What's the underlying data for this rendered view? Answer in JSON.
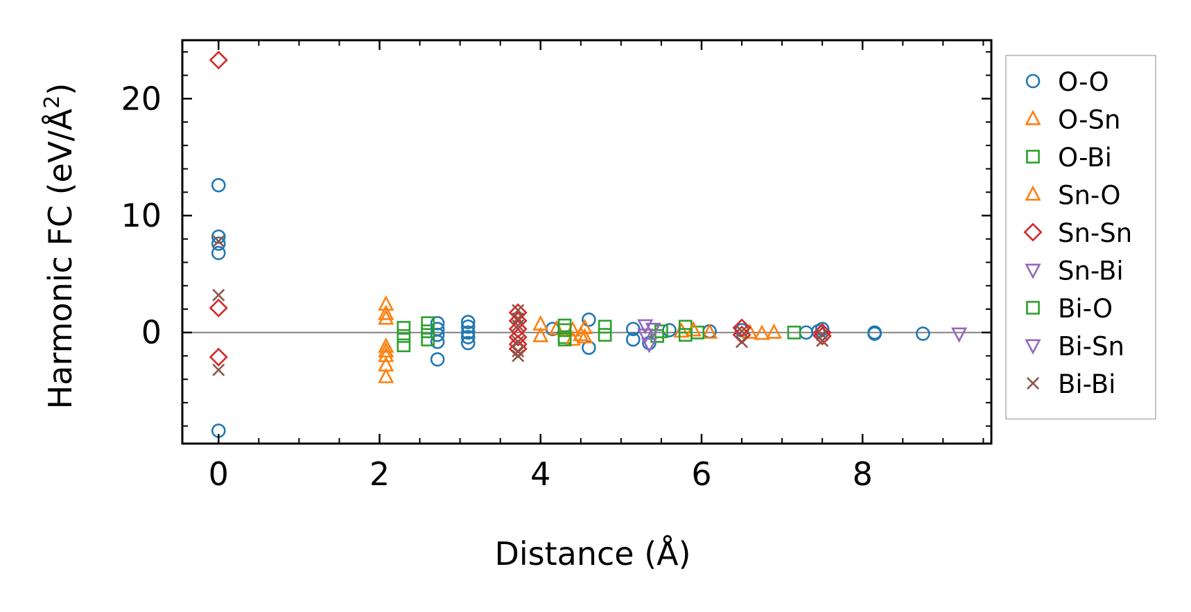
{
  "chart_data": {
    "type": "scatter",
    "xlabel": "Distance (Å)",
    "ylabel": "Harmonic FC (eV/Å",
    "ylabel_sup": "2",
    "ylabel_close": ")",
    "xlim": [
      -0.45,
      9.6
    ],
    "ylim": [
      -9.5,
      25.0
    ],
    "x_ticks": [
      0,
      2,
      4,
      6,
      8
    ],
    "x_tick_labels": [
      "0",
      "2",
      "4",
      "6",
      "8"
    ],
    "y_ticks": [
      0,
      10,
      20
    ],
    "y_tick_labels": [
      "0",
      "10",
      "20"
    ],
    "zero_line": true,
    "grid": false,
    "legend_position": "outside-right",
    "series": [
      {
        "name": "O-O",
        "marker": "circle",
        "color": "#1f77b4",
        "points": [
          [
            0,
            12.6
          ],
          [
            0,
            8.2
          ],
          [
            0,
            7.6
          ],
          [
            0,
            6.8
          ],
          [
            0,
            -8.4
          ],
          [
            2.72,
            0.8
          ],
          [
            2.72,
            0.3
          ],
          [
            2.72,
            -0.2
          ],
          [
            2.72,
            -0.8
          ],
          [
            2.72,
            -2.3
          ],
          [
            3.1,
            0.9
          ],
          [
            3.1,
            0.5
          ],
          [
            3.1,
            0.0
          ],
          [
            3.1,
            -0.4
          ],
          [
            3.1,
            -0.9
          ],
          [
            4.15,
            0.3
          ],
          [
            4.6,
            1.1
          ],
          [
            4.6,
            -1.3
          ],
          [
            5.15,
            0.3
          ],
          [
            5.15,
            -0.6
          ],
          [
            5.35,
            -0.9
          ],
          [
            5.6,
            0.2
          ],
          [
            6.1,
            0.1
          ],
          [
            6.5,
            0.2
          ],
          [
            7.3,
            0.0
          ],
          [
            7.45,
            0.1
          ],
          [
            7.5,
            0.3
          ],
          [
            8.15,
            0.0
          ],
          [
            8.15,
            -0.1
          ],
          [
            8.75,
            -0.1
          ]
        ]
      },
      {
        "name": "O-Sn",
        "marker": "triangle-up",
        "color": "#ff7f0e",
        "points": [
          [
            2.08,
            2.4
          ],
          [
            2.08,
            1.6
          ],
          [
            2.08,
            -1.2
          ],
          [
            2.08,
            -2.0
          ],
          [
            2.08,
            -2.8
          ],
          [
            2.08,
            -3.8
          ],
          [
            4.0,
            0.7
          ],
          [
            4.0,
            -0.3
          ],
          [
            4.2,
            0.3
          ],
          [
            4.4,
            0.2
          ],
          [
            4.5,
            -0.2
          ],
          [
            4.55,
            0.4
          ],
          [
            5.75,
            0.1
          ],
          [
            6.1,
            0.0
          ],
          [
            6.6,
            0.0
          ],
          [
            6.9,
            0.0
          ]
        ]
      },
      {
        "name": "O-Bi",
        "marker": "square",
        "color": "#2ca02c",
        "points": [
          [
            2.3,
            0.4
          ],
          [
            2.3,
            -0.3
          ],
          [
            2.3,
            -1.1
          ],
          [
            2.6,
            0.8
          ],
          [
            2.6,
            0.1
          ],
          [
            2.6,
            -0.6
          ],
          [
            4.3,
            0.6
          ],
          [
            4.3,
            -0.4
          ],
          [
            4.8,
            0.5
          ],
          [
            4.8,
            -0.2
          ],
          [
            5.45,
            -0.3
          ],
          [
            5.8,
            0.5
          ],
          [
            5.95,
            0.0
          ],
          [
            7.15,
            0.0
          ]
        ]
      },
      {
        "name": "Sn-O",
        "marker": "triangle-up",
        "color": "#ff7f0e",
        "points": [
          [
            2.08,
            1.2
          ],
          [
            2.08,
            -1.6
          ],
          [
            4.4,
            -0.6
          ],
          [
            4.55,
            -0.4
          ],
          [
            5.9,
            0.2
          ],
          [
            6.75,
            -0.1
          ]
        ]
      },
      {
        "name": "Sn-Sn",
        "marker": "diamond",
        "color": "#d62728",
        "points": [
          [
            0,
            23.3
          ],
          [
            0,
            2.1
          ],
          [
            0,
            -2.1
          ],
          [
            3.72,
            1.7
          ],
          [
            3.72,
            1.0
          ],
          [
            3.72,
            0.3
          ],
          [
            3.72,
            -0.4
          ],
          [
            3.72,
            -1.0
          ],
          [
            3.72,
            -1.4
          ],
          [
            6.5,
            0.4
          ],
          [
            6.5,
            -0.2
          ],
          [
            7.5,
            0.0
          ],
          [
            7.5,
            -0.3
          ]
        ]
      },
      {
        "name": "Sn-Bi",
        "marker": "triangle-down",
        "color": "#9467bd",
        "points": [
          [
            5.3,
            0.6
          ],
          [
            5.3,
            -0.2
          ],
          [
            9.2,
            -0.1
          ]
        ]
      },
      {
        "name": "Bi-O",
        "marker": "square",
        "color": "#2ca02c",
        "points": [
          [
            4.3,
            0.2
          ],
          [
            4.3,
            -0.6
          ],
          [
            5.5,
            0.1
          ],
          [
            5.8,
            -0.2
          ]
        ]
      },
      {
        "name": "Bi-Sn",
        "marker": "triangle-down",
        "color": "#9467bd",
        "points": [
          [
            5.35,
            -1.0
          ],
          [
            5.4,
            0.3
          ]
        ]
      },
      {
        "name": "Bi-Bi",
        "marker": "x",
        "color": "#8c564b",
        "points": [
          [
            0,
            7.8
          ],
          [
            0,
            3.2
          ],
          [
            0,
            -3.2
          ],
          [
            3.72,
            1.9
          ],
          [
            3.72,
            1.2
          ],
          [
            3.72,
            0.6
          ],
          [
            3.72,
            -0.8
          ],
          [
            3.72,
            -1.6
          ],
          [
            3.72,
            -2.0
          ],
          [
            6.5,
            0.1
          ],
          [
            6.5,
            -0.8
          ],
          [
            7.5,
            -0.2
          ],
          [
            7.5,
            -0.7
          ]
        ]
      }
    ]
  }
}
